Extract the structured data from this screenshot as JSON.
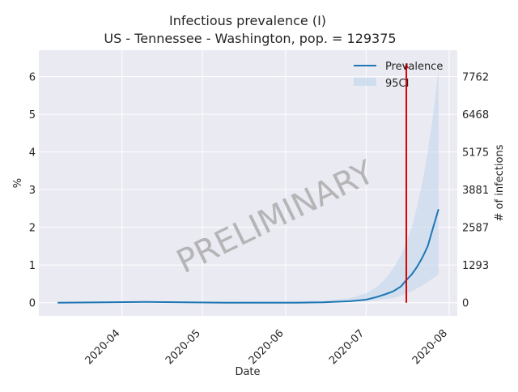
{
  "chart_data": {
    "type": "line",
    "title_line1": "Infectious prevalence (I)",
    "title_line2": "US - Tennessee - Washington, pop. = 129375",
    "xlabel": "Date",
    "ylabel": "%",
    "ylabel_right": "# of infections",
    "xlim": [
      "2020-03-01",
      "2020-08-04"
    ],
    "ylim": [
      -0.35,
      6.7
    ],
    "x_ticks": [
      "2020-04",
      "2020-05",
      "2020-06",
      "2020-07",
      "2020-08"
    ],
    "y_ticks": [
      0,
      1,
      2,
      3,
      4,
      5,
      6
    ],
    "y_right_ticks": [
      0,
      1293,
      2587,
      3881,
      5175,
      6468,
      7762
    ],
    "legend": {
      "position": "top-right",
      "entries": [
        "Prevalence",
        "95CI"
      ]
    },
    "marker_date": "2020-07-16",
    "watermark": "PRELIMINARY",
    "grid": true,
    "colors": {
      "line": "#1f77b4",
      "band": "#c6d9ec",
      "marker": "#e00000",
      "background": "#eaeaf2"
    },
    "series": [
      {
        "name": "Prevalence",
        "x": [
          "2020-03-08",
          "2020-03-25",
          "2020-04-10",
          "2020-04-25",
          "2020-05-10",
          "2020-05-25",
          "2020-06-05",
          "2020-06-15",
          "2020-06-25",
          "2020-07-01",
          "2020-07-05",
          "2020-07-08",
          "2020-07-11",
          "2020-07-14",
          "2020-07-16",
          "2020-07-18",
          "2020-07-20",
          "2020-07-22",
          "2020-07-24",
          "2020-07-26",
          "2020-07-28"
        ],
        "y": [
          0.0,
          0.01,
          0.02,
          0.01,
          0.0,
          0.0,
          0.0,
          0.01,
          0.04,
          0.08,
          0.15,
          0.22,
          0.3,
          0.43,
          0.6,
          0.75,
          0.95,
          1.2,
          1.5,
          2.0,
          2.48
        ]
      },
      {
        "name": "95CI",
        "x": [
          "2020-03-08",
          "2020-06-15",
          "2020-06-25",
          "2020-07-01",
          "2020-07-05",
          "2020-07-08",
          "2020-07-11",
          "2020-07-14",
          "2020-07-16",
          "2020-07-18",
          "2020-07-20",
          "2020-07-22",
          "2020-07-24",
          "2020-07-26",
          "2020-07-28"
        ],
        "lower": [
          0.0,
          0.0,
          0.02,
          0.04,
          0.06,
          0.1,
          0.12,
          0.18,
          0.25,
          0.3,
          0.38,
          0.45,
          0.55,
          0.65,
          0.75
        ],
        "upper": [
          0.0,
          0.05,
          0.12,
          0.25,
          0.42,
          0.62,
          0.9,
          1.25,
          1.6,
          2.0,
          2.55,
          3.2,
          4.0,
          5.0,
          6.2
        ]
      }
    ]
  }
}
